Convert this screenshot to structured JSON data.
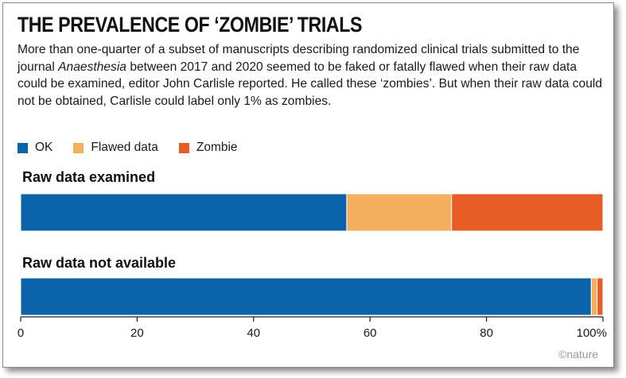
{
  "title": "THE PREVALENCE OF ‘ZOMBIE’ TRIALS",
  "subtitle_before": "More than one-quarter of a subset of manuscripts describing randomized clinical trials submitted to the journal ",
  "subtitle_journal": "Anaesthesia",
  "subtitle_after": " between 2017 and 2020 seemed to be faked or fatally flawed when their raw data could be examined, editor John Carlisle reported. He called these ‘zombies’. But when their raw data could not be obtained, Carlisle could label only 1% as zombies.",
  "credit": "©nature",
  "colors": {
    "ok": "#0b63a9",
    "flawed": "#f5ad5e",
    "zombie": "#e85d25"
  },
  "chart_data": {
    "type": "bar",
    "orientation": "horizontal",
    "stacked": true,
    "categories": [
      "Raw data examined",
      "Raw data not available"
    ],
    "series": [
      {
        "name": "OK",
        "values": [
          56,
          98
        ]
      },
      {
        "name": "Flawed data",
        "values": [
          18,
          1
        ]
      },
      {
        "name": "Zombie",
        "values": [
          26,
          1
        ]
      }
    ],
    "xlim": [
      0,
      100
    ],
    "xticks": [
      0,
      20,
      40,
      60,
      80,
      100
    ],
    "xtick_labels": [
      "0",
      "20",
      "40",
      "60",
      "80",
      "100%"
    ],
    "legend_position": "top-left",
    "grid": false
  }
}
